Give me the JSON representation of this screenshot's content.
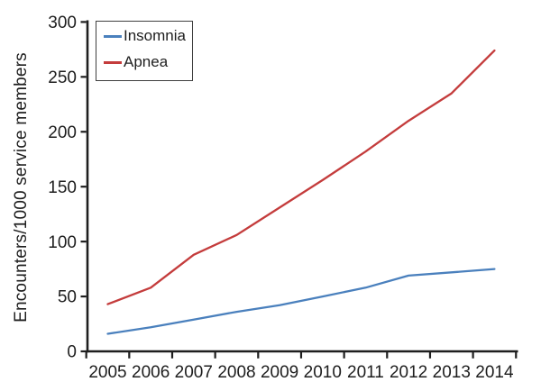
{
  "chart_data": {
    "type": "line",
    "title": "",
    "xlabel": "",
    "ylabel": "Encounters/1000 service members",
    "categories": [
      "2005",
      "2006",
      "2007",
      "2008",
      "2009",
      "2010",
      "2011",
      "2012",
      "2013",
      "2014"
    ],
    "yticks": [
      0,
      50,
      100,
      150,
      200,
      250,
      300
    ],
    "ylim": [
      0,
      300
    ],
    "grid": false,
    "legend_position": "top-left",
    "series": [
      {
        "name": "Insomnia",
        "color": "#4a80bd",
        "values": [
          16,
          22,
          29,
          36,
          42,
          50,
          58,
          69,
          72,
          75
        ]
      },
      {
        "name": "Apnea",
        "color": "#c43c3c",
        "values": [
          43,
          58,
          88,
          106,
          131,
          156,
          182,
          210,
          235,
          274
        ]
      }
    ]
  },
  "colors": {
    "axis": "#1e1e1e",
    "text": "#1e1e1e",
    "legend_border": "#3f3f3f",
    "background": "#ffffff"
  }
}
